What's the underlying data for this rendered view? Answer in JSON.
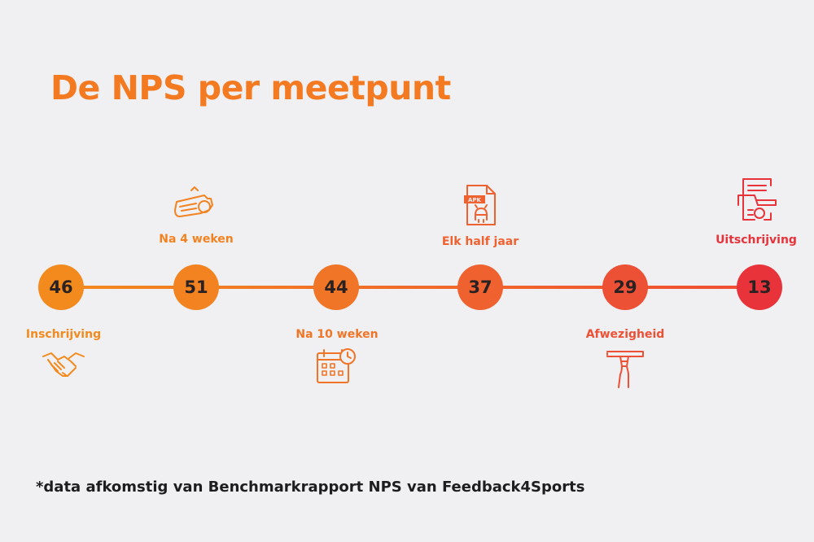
{
  "title": "De NPS per meetpunt",
  "footnote": "*data afkomstig van Benchmarkrapport NPS van Feedback4Sports",
  "colors": {
    "title": "#f47a22",
    "start": "#f28a1e",
    "end": "#e8333a"
  },
  "points": [
    {
      "value": "46",
      "label": "Inschrijving",
      "label_position": "below",
      "icon": "handshake-icon",
      "color": "#f28a1e"
    },
    {
      "value": "51",
      "label": "Na 4 weken",
      "label_position": "above",
      "icon": "whistle-icon",
      "color": "#f28320"
    },
    {
      "value": "44",
      "label": "Na 10 weken",
      "label_position": "below",
      "icon": "calendar-clock-icon",
      "color": "#f07526"
    },
    {
      "value": "37",
      "label": "Elk half jaar",
      "label_position": "above",
      "icon": "apk-file-icon",
      "color": "#ef6230"
    },
    {
      "value": "29",
      "label": "Afwezigheid",
      "label_position": "below",
      "icon": "hand-pointing-icon",
      "color": "#ec5035"
    },
    {
      "value": "13",
      "label": "Uitschrijving",
      "label_position": "above",
      "icon": "certificate-icon",
      "color": "#e8333a"
    }
  ]
}
